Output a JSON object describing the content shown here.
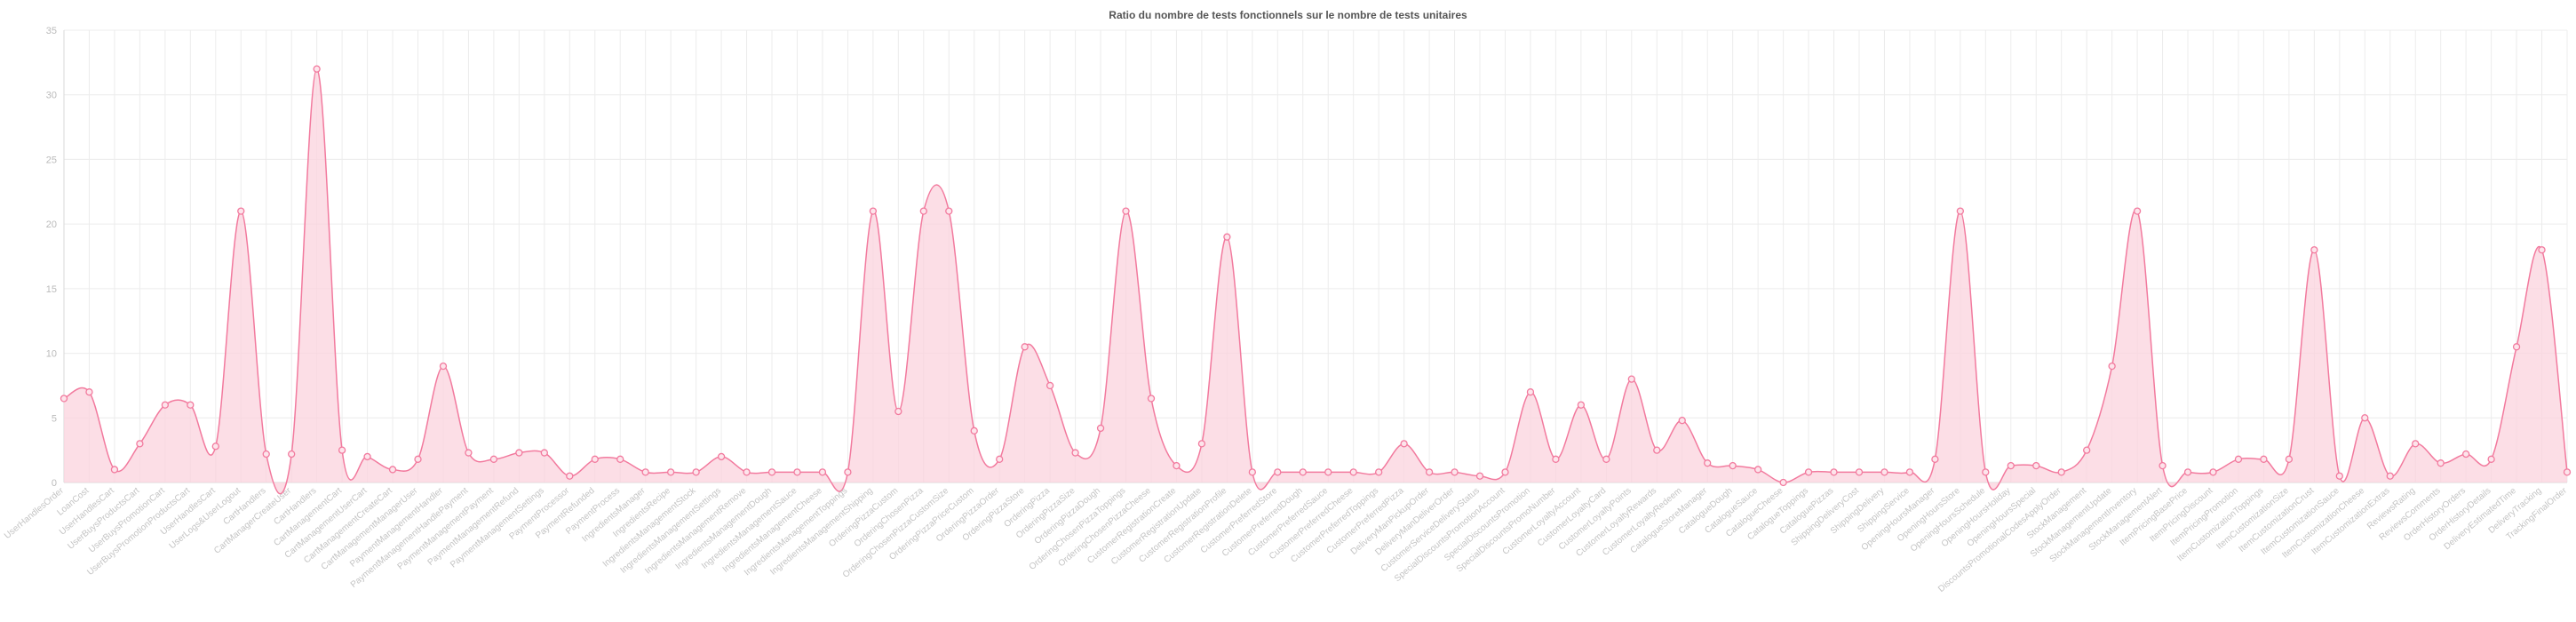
{
  "chart_data": {
    "type": "area",
    "title": "Ratio du nombre de tests fonctionnels sur le nombre de tests unitaires",
    "xlabel": "",
    "ylabel": "",
    "ylim": [
      0,
      35
    ],
    "yticks": [
      "0",
      "5",
      "10",
      "15",
      "20",
      "25",
      "30",
      "35"
    ],
    "grid": true,
    "colors": {
      "line": "#f27a9e",
      "fill": "#fbd3de",
      "point": "#f27a9e"
    },
    "categories": [
      "UserHandlesOrder",
      "LoanCost",
      "UserHandlesCart",
      "UserBuysProductsCart",
      "UserBuysPromotionCart",
      "UserBuysPromotionProductsCart",
      "UserHandlesCart",
      "UserLogs&UserLogout",
      "CartHandlers",
      "CartManagerCreateUser",
      "CartHandlers",
      "CartManagementCart",
      "CartManagementUserCart",
      "CartManagementCreateCart",
      "CartManagementManagerUser",
      "PaymentManagementHandler",
      "PaymentManagementHandlePayment",
      "PaymentManagementPayment",
      "PaymentManagementRefund",
      "PaymentManagementSettings",
      "PaymentProcessor",
      "PaymentRefunded",
      "PaymentProcess",
      "IngredientsManager",
      "IngredientsRecipe",
      "IngredientsManagementStock",
      "IngredientsManagementSettings",
      "IngredientsManagementRemove",
      "IngredientsManagementDough",
      "IngredientsManagementSauce",
      "IngredientsManagementCheese",
      "IngredientsManagementToppings",
      "IngredientsManagementShipping",
      "OrderingPizzaCustom",
      "OrderingChosenPizza",
      "OrderingChosenPizzaCustomSize",
      "OrderingPizzaPriceCustom",
      "OrderingPizzaOrder",
      "OrderingPizzaStore",
      "OrderingPizza",
      "OrderingPizzaSize",
      "OrderingPizzaDough",
      "OrderingChosenPizzaToppings",
      "OrderingChosenPizzaCheese",
      "CustomerRegistrationCreate",
      "CustomerRegistrationUpdate",
      "CustomerRegistrationProfile",
      "CustomerRegistrationDelete",
      "CustomerPreferredStore",
      "CustomerPreferredDough",
      "CustomerPreferredSauce",
      "CustomerPreferredCheese",
      "CustomerPreferredToppings",
      "CustomerPreferredPizza",
      "DeliveryManPickupOrder",
      "DeliveryManDeliverOrder",
      "CustomerServiceDeliveryStatus",
      "SpecialDiscountsPromotionAccount",
      "SpecialDiscountsPromotion",
      "SpecialDiscountsPromoNumber",
      "CustomerLoyaltyAccount",
      "CustomerLoyaltyCard",
      "CustomerLoyaltyPoints",
      "CustomerLoyaltyRewards",
      "CustomerLoyaltyRedeem",
      "CatalogueStoreManager",
      "CatalogueDough",
      "CatalogueSauce",
      "CatalogueCheese",
      "CatalogueToppings",
      "CataloguePizzas",
      "ShippingDeliveryCost",
      "ShippingDelivery",
      "ShippingService",
      "OpeningHoursManager",
      "OpeningHoursStore",
      "OpeningHoursSchedule",
      "OpeningHoursHoliday",
      "OpeningHoursSpecial",
      "DiscountsPromotionalCodesApplyOrder",
      "StockManagement",
      "StockManagementUpdate",
      "StockManagementInventory",
      "StockManagementAlert",
      "ItemPricingBasePrice",
      "ItemPricingDiscount",
      "ItemPricingPromotion",
      "ItemCustomizationToppings",
      "ItemCustomizationSize",
      "ItemCustomizationCrust",
      "ItemCustomizationSauce",
      "ItemCustomizationCheese",
      "ItemCustomizationExtras",
      "ReviewsRating",
      "ReviewsComments",
      "OrderHistoryOrders",
      "OrderHistoryDetails",
      "DeliveryEstimatedTime",
      "DeliveryTracking",
      "TrackingFinalOrder"
    ],
    "series": [
      {
        "values": [
          6.5,
          7,
          1,
          3,
          6,
          6,
          2.8,
          21,
          2.2,
          2.2,
          32,
          2.5,
          2,
          1,
          1.8,
          9,
          2.3,
          1.8,
          2.3,
          2.3,
          0.5,
          1.8,
          1.8,
          0.8,
          0.8,
          0.8,
          2,
          0.8,
          0.8,
          0.8,
          0.8,
          0.8,
          21,
          5.5,
          21,
          21,
          4,
          1.8,
          10.5,
          7.5,
          2.3,
          4.2,
          21,
          6.5,
          1.3,
          3,
          19,
          0.8,
          0.8,
          0.8,
          0.8,
          0.8,
          0.8,
          3,
          0.8,
          0.8,
          0.5,
          0.8,
          7,
          1.8,
          6,
          1.8,
          8,
          2.5,
          4.8,
          1.5,
          1.3,
          1,
          0,
          0.8,
          0.8,
          0.8,
          0.8,
          0.8,
          1.8,
          21,
          0.8,
          1.3,
          1.3,
          0.8,
          2.5,
          9,
          21,
          1.3,
          0.8,
          0.8,
          1.8,
          1.8,
          1.8,
          18,
          0.5,
          5,
          0.5,
          3,
          1.5,
          2.2,
          1.8,
          10.5,
          18,
          0.8
        ]
      }
    ]
  }
}
